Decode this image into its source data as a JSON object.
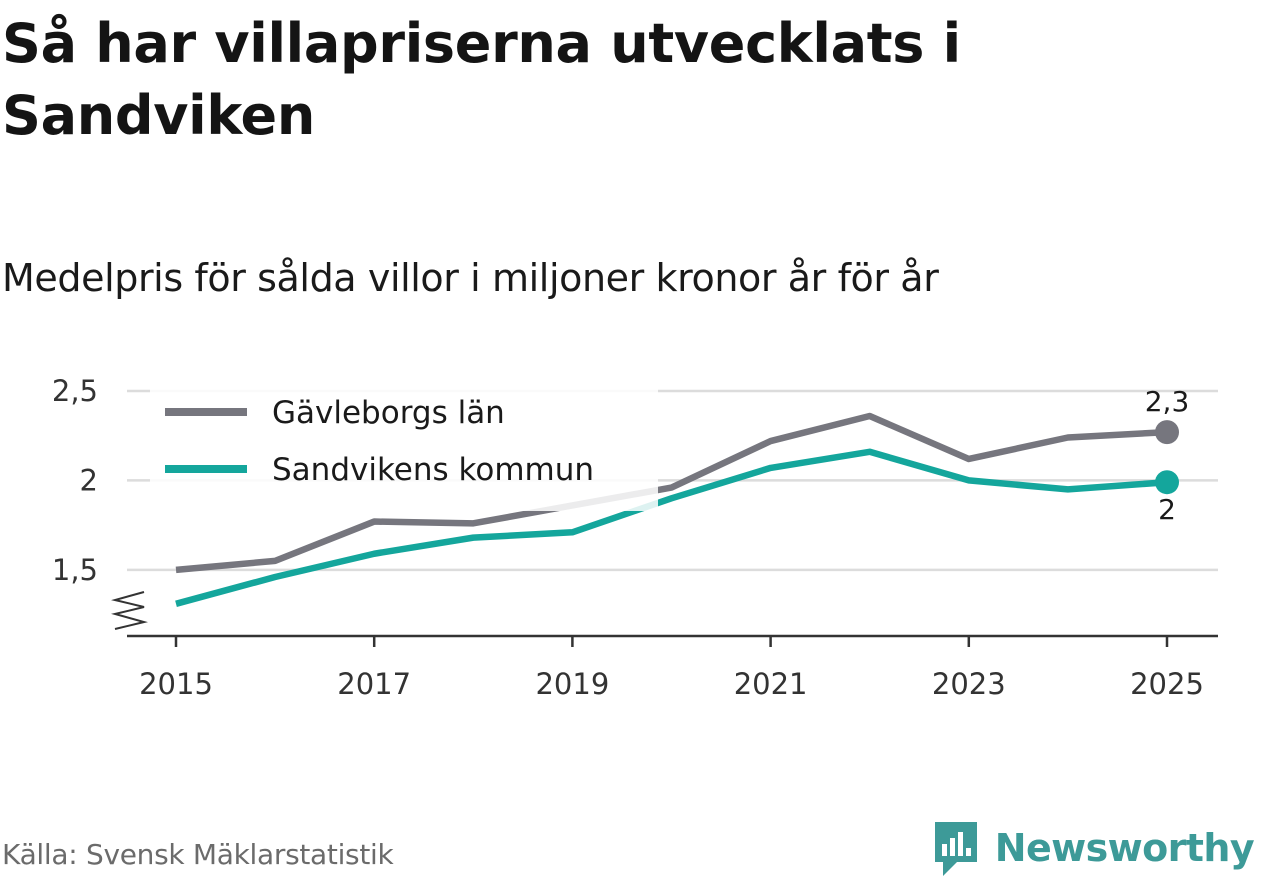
{
  "title": "Så har villapriserna utvecklats i Sandviken",
  "subtitle": "Medelpris för sålda villor i miljoner kronor år för år",
  "source": "Källa: Svensk Mäklarstatistik",
  "brand": {
    "name": "Newsworthy",
    "icon": "newsworthy-logo-icon",
    "color": "#3d9a98"
  },
  "chart_data": {
    "type": "line",
    "x": [
      2015,
      2016,
      2017,
      2018,
      2019,
      2020,
      2021,
      2022,
      2023,
      2024,
      2025
    ],
    "x_ticks": [
      "2015",
      "2017",
      "2019",
      "2021",
      "2023",
      "2025"
    ],
    "y_ticks": [
      "1,5",
      "2",
      "2,5"
    ],
    "ylim": [
      1.13,
      2.5
    ],
    "y_axis_break": true,
    "grid": true,
    "legend_position": "top-left",
    "series": [
      {
        "name": "Gävleborgs län",
        "color": "#76767e",
        "values": [
          1.5,
          1.55,
          1.77,
          1.76,
          1.86,
          1.96,
          2.22,
          2.36,
          2.12,
          2.24,
          2.27
        ],
        "end_label": "2,3"
      },
      {
        "name": "Sandvikens kommun",
        "color": "#14a69c",
        "values": [
          1.31,
          1.46,
          1.59,
          1.68,
          1.71,
          1.9,
          2.07,
          2.16,
          2.0,
          1.95,
          1.99
        ],
        "end_label": "2"
      }
    ]
  }
}
